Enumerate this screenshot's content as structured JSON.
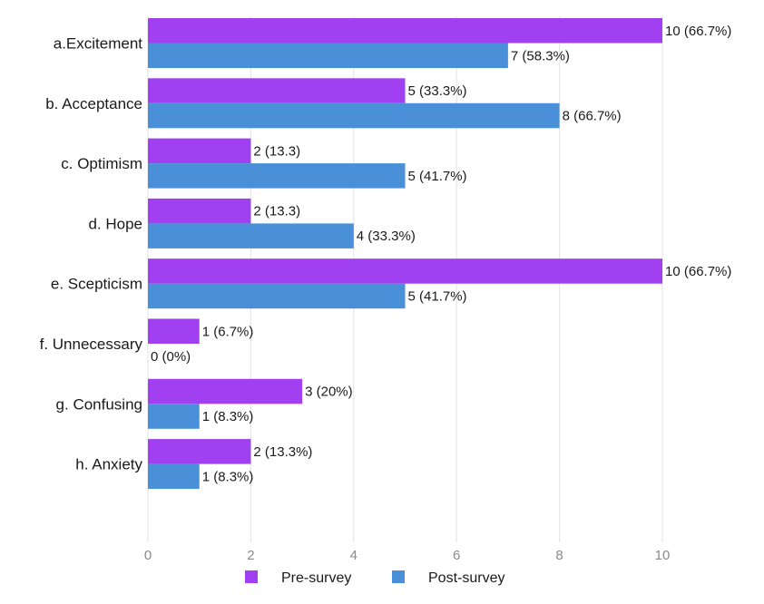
{
  "chart_data": {
    "type": "bar",
    "orientation": "horizontal",
    "title": "",
    "xlabel": "",
    "ylabel": "",
    "xlim": [
      0,
      10
    ],
    "x_ticks": [
      0,
      2,
      4,
      6,
      8,
      10
    ],
    "x_tick_labels": [
      "0",
      "2",
      "4",
      "6",
      "8",
      "10"
    ],
    "grid": true,
    "legend_position": "bottom",
    "categories": [
      "a.Excitement",
      "b. Acceptance",
      "c. Optimism",
      "d. Hope",
      "e. Scepticism",
      "f. Unnecessary",
      "g. Confusing",
      "h. Anxiety"
    ],
    "series": [
      {
        "name": "Pre-survey",
        "color": "#a040f0",
        "values": [
          10,
          5,
          2,
          2,
          10,
          1,
          3,
          2
        ],
        "labels": [
          "10 (66.7%)",
          "5 (33.3%)",
          "2 (13.3)",
          "2 (13.3)",
          "10 (66.7%)",
          "1 (6.7%)",
          "3 (20%)",
          "2 (13.3%)"
        ]
      },
      {
        "name": "Post-survey",
        "color": "#4a90d9",
        "values": [
          7,
          8,
          5,
          4,
          5,
          0,
          1,
          1
        ],
        "labels": [
          "7 (58.3%)",
          "8 (66.7%)",
          "5 (41.7%)",
          "4 (33.3%)",
          "5 (41.7%)",
          "0 (0%)",
          "1 (8.3%)",
          "1 (8.3%)"
        ]
      }
    ]
  }
}
